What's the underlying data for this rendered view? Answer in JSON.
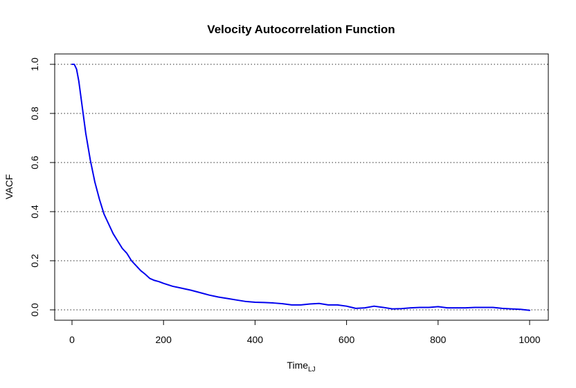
{
  "chart_data": {
    "type": "line",
    "title": "Velocity Autocorrelation Function",
    "xlabel_main": "Time",
    "xlabel_sub": "LJ",
    "ylabel": "VACF",
    "xlim": [
      0,
      1000
    ],
    "ylim": [
      0,
      1
    ],
    "x_ticks": [
      0,
      200,
      400,
      600,
      800,
      1000
    ],
    "x_tick_labels": [
      "0",
      "200",
      "400",
      "600",
      "800",
      "1000"
    ],
    "y_ticks": [
      0,
      0.2,
      0.4,
      0.6,
      0.8,
      1.0
    ],
    "y_tick_labels": [
      "0.0",
      "0.2",
      "0.4",
      "0.6",
      "0.8",
      "1.0"
    ],
    "horizontal_gridlines": true,
    "gridline_style": "dotted",
    "series": [
      {
        "color": "#0000ee",
        "x": [
          0,
          5,
          10,
          15,
          20,
          25,
          30,
          40,
          50,
          60,
          70,
          80,
          90,
          100,
          110,
          120,
          130,
          140,
          150,
          160,
          170,
          180,
          190,
          200,
          220,
          240,
          260,
          280,
          300,
          320,
          340,
          360,
          380,
          400,
          420,
          440,
          460,
          480,
          500,
          520,
          540,
          560,
          580,
          600,
          620,
          640,
          660,
          680,
          700,
          720,
          740,
          760,
          780,
          800,
          820,
          840,
          860,
          880,
          900,
          920,
          940,
          960,
          980,
          1000
        ],
        "y": [
          1.0,
          1.0,
          0.98,
          0.93,
          0.86,
          0.79,
          0.72,
          0.61,
          0.52,
          0.45,
          0.39,
          0.35,
          0.31,
          0.28,
          0.25,
          0.23,
          0.2,
          0.18,
          0.16,
          0.145,
          0.128,
          0.12,
          0.115,
          0.108,
          0.096,
          0.088,
          0.08,
          0.07,
          0.06,
          0.052,
          0.046,
          0.04,
          0.034,
          0.031,
          0.03,
          0.028,
          0.025,
          0.02,
          0.02,
          0.024,
          0.026,
          0.02,
          0.02,
          0.015,
          0.006,
          0.008,
          0.015,
          0.01,
          0.004,
          0.005,
          0.008,
          0.01,
          0.01,
          0.013,
          0.008,
          0.008,
          0.008,
          0.01,
          0.01,
          0.01,
          0.006,
          0.004,
          0.002,
          -0.002
        ]
      }
    ]
  }
}
